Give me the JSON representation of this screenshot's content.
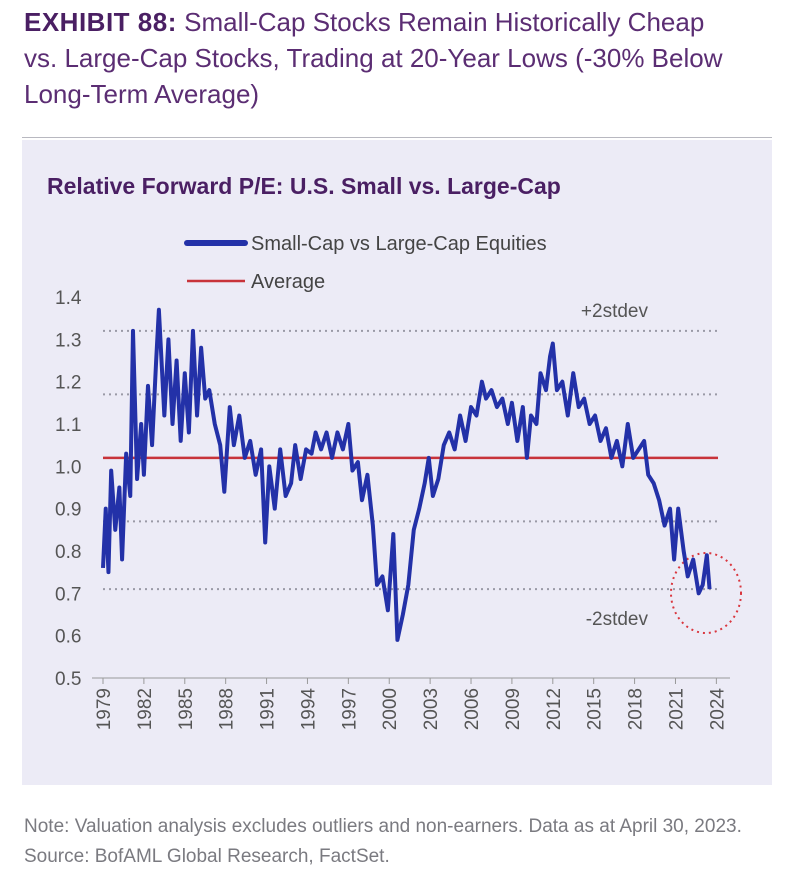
{
  "chart_data": {
    "type": "line",
    "exhibit": "EXHIBIT 88:",
    "title": "Small-Cap Stocks Remain Historically Cheap vs. Large-Cap Stocks, Trading at 20-Year Lows (-30% Below Long-Term Average)",
    "subtitle": "Relative Forward P/E: U.S. Small vs. Large-Cap",
    "note": "Note: Valuation analysis excludes outliers and non-earners. Data as at April 30, 2023. Source: BofAML Global Research, FactSet.",
    "x": [
      1979.0,
      1979.2,
      1979.4,
      1979.6,
      1979.9,
      1980.2,
      1980.4,
      1980.7,
      1981.0,
      1981.2,
      1981.5,
      1981.8,
      1982.0,
      1982.3,
      1982.6,
      1982.9,
      1983.1,
      1983.5,
      1983.8,
      1984.1,
      1984.4,
      1984.7,
      1985.0,
      1985.3,
      1985.6,
      1985.9,
      1986.2,
      1986.5,
      1986.8,
      1987.2,
      1987.6,
      1987.9,
      1988.3,
      1988.6,
      1989.0,
      1989.4,
      1989.8,
      1990.2,
      1990.6,
      1990.9,
      1991.2,
      1991.6,
      1992.0,
      1992.4,
      1992.8,
      1993.1,
      1993.5,
      1993.9,
      1994.3,
      1994.6,
      1995.0,
      1995.4,
      1995.8,
      1996.2,
      1996.6,
      1997.0,
      1997.3,
      1997.7,
      1998.0,
      1998.4,
      1998.8,
      1999.1,
      1999.5,
      1999.9,
      2000.3,
      2000.6,
      2001.0,
      2001.4,
      2001.8,
      2002.2,
      2002.6,
      2002.9,
      2003.2,
      2003.6,
      2004.0,
      2004.4,
      2004.8,
      2005.2,
      2005.6,
      2006.0,
      2006.4,
      2006.8,
      2007.1,
      2007.5,
      2007.9,
      2008.3,
      2008.7,
      2009.0,
      2009.4,
      2009.8,
      2010.1,
      2010.4,
      2010.8,
      2011.1,
      2011.5,
      2011.8,
      2012.0,
      2012.3,
      2012.7,
      2013.1,
      2013.5,
      2013.9,
      2014.3,
      2014.7,
      2015.1,
      2015.5,
      2015.9,
      2016.3,
      2016.7,
      2017.1,
      2017.5,
      2017.9,
      2018.3,
      2018.7,
      2019.0,
      2019.4,
      2019.8,
      2020.2,
      2020.6,
      2020.9,
      2021.2,
      2021.6,
      2021.9,
      2022.3,
      2022.7,
      2023.0,
      2023.3,
      2023.5
    ],
    "series": [
      {
        "name": "Small-Cap vs Large-Cap Equities",
        "color": "#2331a8",
        "values": [
          0.76,
          0.9,
          0.75,
          0.99,
          0.85,
          0.95,
          0.78,
          1.03,
          0.93,
          1.32,
          0.97,
          1.1,
          0.98,
          1.19,
          1.05,
          1.25,
          1.37,
          1.12,
          1.3,
          1.1,
          1.25,
          1.06,
          1.22,
          1.08,
          1.32,
          1.12,
          1.28,
          1.16,
          1.18,
          1.1,
          1.05,
          0.94,
          1.14,
          1.05,
          1.12,
          1.02,
          1.06,
          0.98,
          1.04,
          0.82,
          1.0,
          0.9,
          1.04,
          0.93,
          0.96,
          1.05,
          0.97,
          1.04,
          1.03,
          1.08,
          1.04,
          1.08,
          1.02,
          1.08,
          1.04,
          1.1,
          0.99,
          1.01,
          0.92,
          0.98,
          0.86,
          0.72,
          0.74,
          0.66,
          0.84,
          0.59,
          0.65,
          0.72,
          0.85,
          0.9,
          0.96,
          1.02,
          0.93,
          0.97,
          1.05,
          1.08,
          1.04,
          1.12,
          1.06,
          1.14,
          1.12,
          1.2,
          1.16,
          1.18,
          1.14,
          1.16,
          1.1,
          1.15,
          1.06,
          1.14,
          1.02,
          1.12,
          1.1,
          1.22,
          1.18,
          1.26,
          1.29,
          1.18,
          1.2,
          1.12,
          1.22,
          1.14,
          1.16,
          1.1,
          1.12,
          1.06,
          1.09,
          1.02,
          1.06,
          1.0,
          1.1,
          1.02,
          1.04,
          1.06,
          0.98,
          0.96,
          0.92,
          0.86,
          0.9,
          0.78,
          0.9,
          0.8,
          0.74,
          0.78,
          0.7,
          0.72,
          0.79,
          0.71
        ]
      }
    ],
    "average": {
      "name": "Average",
      "value": 1.02,
      "color": "#c8333a"
    },
    "stdev_lines": [
      1.32,
      1.17,
      0.87,
      0.71
    ],
    "annotations": [
      {
        "text": "+2stdev",
        "value": 1.32
      },
      {
        "text": "-2stdev",
        "value": 0.71
      }
    ],
    "xlim": [
      1979,
      2025
    ],
    "xticks": [
      1979,
      1982,
      1985,
      1988,
      1991,
      1994,
      1997,
      2000,
      2003,
      2006,
      2009,
      2012,
      2015,
      2018,
      2021,
      2024
    ],
    "ylim": [
      0.5,
      1.4
    ],
    "yticks": [
      0.5,
      0.6,
      0.7,
      0.8,
      0.9,
      {
        "value": 1,
        "label": "1.0"
      },
      1.1,
      1.2,
      1.3,
      1.4
    ]
  }
}
